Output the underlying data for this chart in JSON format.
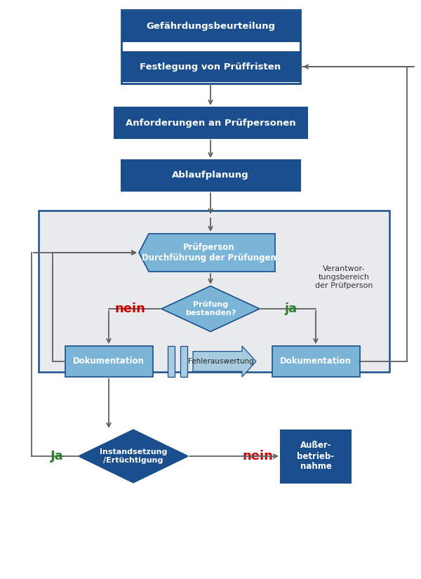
{
  "dark_blue": "#1a4e8c",
  "light_blue": "#7ab4d6",
  "light_blue_fill": "#a8cce0",
  "gray_bg": "#e8eaed",
  "arrow_color": "#606060",
  "red": "#cc0000",
  "green": "#2e7d32",
  "white": "#ffffff",
  "box1_text": "Gefährdungsbeurteilung",
  "box2_text": "Festlegung von Prüffristen",
  "box3_text": "Anforderungen an Prüfpersonen",
  "box4_text": "Ablaufplanung",
  "box5_text": "Prüfperson\nDurchführung der Prüfungen",
  "diamond1_text": "Prüfung\nbestanden?",
  "box6_text": "Dokumentation",
  "fehler_text": "Fehlerauswertung",
  "box7_text": "Dokumentation",
  "diamond2_text": "Instandsetzung\n/Ertüchtigung",
  "box8_text": "Außer-\nbetrieb-\nnahme",
  "verant_text": "Verantwor-\ntungsbereich\nder Prüfperson",
  "nein1": "nein",
  "ja1": "ja",
  "ja2": "Ja",
  "nein2": "nein",
  "figw": 6.0,
  "figh": 8.25,
  "dpi": 100
}
